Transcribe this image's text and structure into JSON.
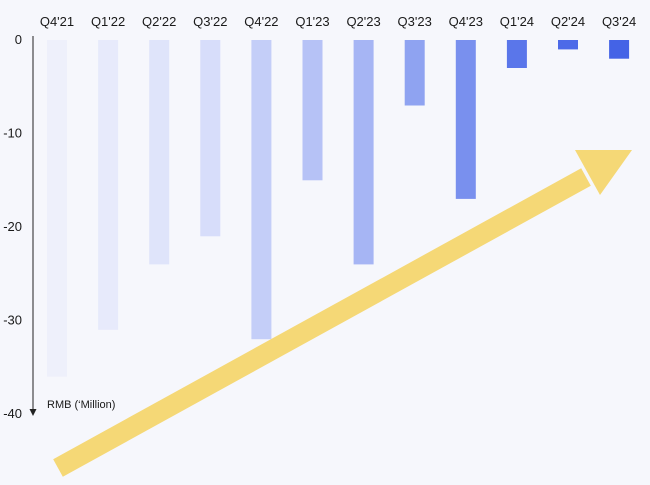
{
  "chart_data": {
    "type": "bar",
    "categories": [
      "Q4'21",
      "Q1'22",
      "Q2'22",
      "Q3'22",
      "Q4'22",
      "Q1'23",
      "Q2'23",
      "Q3'23",
      "Q4'23",
      "Q1'24",
      "Q2'24",
      "Q3'24"
    ],
    "values": [
      -36,
      -31,
      -24,
      -21,
      -32,
      -15,
      -24,
      -7,
      -17,
      -3,
      -1,
      -2
    ],
    "bar_colors": [
      "#eef0fb",
      "#e7eafb",
      "#dfe4fa",
      "#d7ddfa",
      "#c4cef8",
      "#b6c2f6",
      "#a6b5f4",
      "#8fa3f1",
      "#7990ee",
      "#5a76ea",
      "#4d6ae8",
      "#4463e6"
    ],
    "ylabel": "RMB (‘Million)",
    "ylim": [
      -40,
      0
    ],
    "yticks": [
      0,
      -10,
      -20,
      -30,
      -40
    ],
    "ytick_labels": [
      "0",
      "-10",
      "-20",
      "-30",
      "-40"
    ],
    "grid": false,
    "annotation": {
      "type": "arrow",
      "color": "#f5d876",
      "direction": "up-right"
    }
  }
}
